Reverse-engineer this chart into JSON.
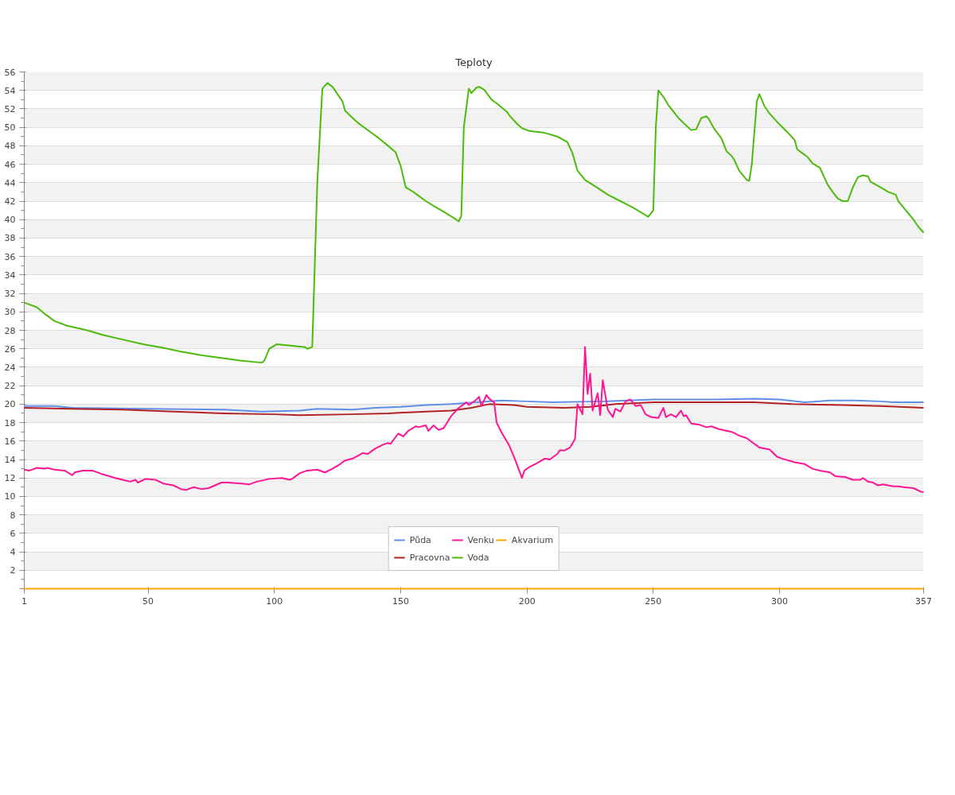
{
  "chart_data": {
    "type": "line",
    "title": "Teploty",
    "xlim": [
      1,
      357
    ],
    "ylim": [
      0,
      56
    ],
    "yticks": [
      {
        "value": 0,
        "label": null
      },
      2,
      4,
      6,
      8,
      10,
      12,
      14,
      16,
      18,
      20,
      22,
      24,
      26,
      28,
      30,
      32,
      34,
      36,
      38,
      40,
      42,
      44,
      46,
      48,
      50,
      52,
      54,
      56
    ],
    "xticks": [
      1,
      50,
      100,
      150,
      200,
      250,
      300,
      357
    ],
    "grid": "y",
    "legend": "bottom",
    "line_style": "solid",
    "marker": "none",
    "series": [
      {
        "name": "Půda",
        "color": "#5f8fe8",
        "x": [
          1,
          13,
          20,
          50,
          80,
          95,
          110,
          117,
          131,
          140,
          150,
          160,
          170,
          180,
          190,
          200,
          210,
          230,
          240,
          250,
          275,
          290,
          300,
          310,
          320,
          330,
          340,
          345,
          357
        ],
        "values": [
          19.8,
          19.8,
          19.6,
          19.5,
          19.4,
          19.2,
          19.3,
          19.5,
          19.4,
          19.6,
          19.7,
          19.9,
          20.0,
          20.2,
          20.4,
          20.3,
          20.2,
          20.3,
          20.4,
          20.5,
          20.5,
          20.6,
          20.5,
          20.2,
          20.4,
          20.4,
          20.3,
          20.2,
          20.2
        ]
      },
      {
        "name": "Pracovna",
        "color": "#b22222",
        "x": [
          1,
          20,
          40,
          60,
          80,
          100,
          110,
          130,
          145,
          160,
          170,
          178,
          185,
          195,
          200,
          215,
          225,
          235,
          250,
          290,
          305,
          325,
          340,
          357
        ],
        "values": [
          19.6,
          19.5,
          19.4,
          19.2,
          19.0,
          18.9,
          18.8,
          18.9,
          19.0,
          19.2,
          19.3,
          19.6,
          20.0,
          19.9,
          19.7,
          19.6,
          19.7,
          20.0,
          20.2,
          20.2,
          20.0,
          19.9,
          19.8,
          19.6
        ]
      },
      {
        "name": "Venku",
        "color": "#ff1493",
        "x": [
          1,
          3,
          6,
          9,
          10,
          13,
          17,
          20,
          21,
          24,
          28,
          32,
          37,
          40,
          43,
          45,
          46,
          49,
          53,
          56,
          60,
          63,
          65,
          68,
          71,
          74,
          79,
          82,
          87,
          90,
          93,
          98,
          103,
          106,
          107,
          110,
          113,
          117,
          120,
          123,
          126,
          128,
          131,
          135,
          137,
          140,
          143,
          145,
          146,
          149,
          151,
          153,
          156,
          157,
          160,
          161,
          163,
          165,
          167,
          170,
          173,
          176,
          177,
          180,
          181,
          182,
          184,
          185,
          187,
          188,
          190,
          193,
          195,
          198,
          199,
          201,
          204,
          207,
          209,
          212,
          213,
          215,
          217,
          219,
          220,
          222,
          223,
          224,
          225,
          226,
          228,
          229,
          230,
          231,
          232,
          234,
          235,
          237,
          239,
          241,
          243,
          245,
          247,
          249,
          252,
          254,
          255,
          257,
          259,
          261,
          262,
          263,
          265,
          268,
          271,
          273,
          276,
          281,
          284,
          287,
          290,
          292,
          296,
          299,
          301,
          306,
          310,
          313,
          316,
          320,
          322,
          326,
          329,
          332,
          333,
          335,
          337,
          339,
          341,
          345,
          347,
          349,
          353,
          356,
          357
        ],
        "values": [
          12.9,
          12.8,
          13.1,
          13.0,
          13.1,
          12.9,
          12.8,
          12.3,
          12.6,
          12.8,
          12.8,
          12.4,
          12.0,
          11.8,
          11.6,
          11.8,
          11.5,
          11.9,
          11.8,
          11.4,
          11.2,
          10.8,
          10.7,
          11.0,
          10.8,
          10.9,
          11.5,
          11.5,
          11.4,
          11.3,
          11.6,
          11.9,
          12.0,
          11.8,
          11.9,
          12.5,
          12.8,
          12.9,
          12.6,
          13.0,
          13.5,
          13.9,
          14.1,
          14.7,
          14.6,
          15.2,
          15.6,
          15.8,
          15.7,
          16.8,
          16.5,
          17.1,
          17.6,
          17.5,
          17.7,
          17.1,
          17.7,
          17.2,
          17.4,
          18.7,
          19.6,
          20.2,
          19.9,
          20.5,
          20.8,
          19.8,
          21.0,
          20.6,
          20.2,
          18.0,
          16.9,
          15.5,
          14.2,
          12.0,
          12.8,
          13.2,
          13.6,
          14.1,
          14.0,
          14.6,
          15.0,
          15.0,
          15.3,
          16.2,
          20.0,
          18.9,
          26.2,
          21.1,
          23.3,
          19.3,
          21.2,
          18.8,
          22.6,
          21.0,
          19.4,
          18.6,
          19.5,
          19.2,
          20.3,
          20.5,
          19.8,
          19.9,
          18.9,
          18.6,
          18.5,
          19.6,
          18.6,
          18.9,
          18.6,
          19.3,
          18.7,
          18.8,
          17.9,
          17.8,
          17.5,
          17.6,
          17.3,
          17.0,
          16.6,
          16.3,
          15.7,
          15.3,
          15.1,
          14.3,
          14.1,
          13.7,
          13.5,
          13.0,
          12.8,
          12.6,
          12.2,
          12.1,
          11.8,
          11.8,
          12.0,
          11.6,
          11.5,
          11.2,
          11.3,
          11.1,
          11.1,
          11.0,
          10.9,
          10.5,
          10.5
        ]
      },
      {
        "name": "Voda",
        "color": "#4cbb0c",
        "x": [
          1,
          6,
          9,
          13,
          18,
          26,
          32,
          40,
          48,
          56,
          63,
          71,
          79,
          87,
          95,
          96,
          98,
          101,
          104,
          112,
          113,
          115,
          117,
          119,
          121,
          123,
          125,
          127,
          128,
          131,
          133,
          138,
          141,
          145,
          148,
          150,
          152,
          155,
          160,
          163,
          168,
          172,
          173,
          174,
          175,
          177,
          178,
          180,
          181,
          183,
          186,
          188,
          192,
          193,
          196,
          198,
          201,
          207,
          212,
          216,
          218,
          220,
          223,
          227,
          232,
          237,
          242,
          245,
          248,
          250,
          251,
          252,
          254,
          256,
          260,
          263,
          265,
          267,
          269,
          271,
          272,
          274,
          277,
          279,
          281,
          282,
          284,
          287,
          288,
          289,
          291,
          292,
          294,
          296,
          299,
          303,
          306,
          307,
          309,
          311,
          313,
          316,
          319,
          321,
          323,
          325,
          327,
          329,
          331,
          333,
          335,
          336,
          340,
          343,
          346,
          347,
          350,
          353,
          355,
          357
        ],
        "values": [
          31.0,
          30.5,
          29.8,
          29.0,
          28.5,
          28.0,
          27.5,
          27.0,
          26.5,
          26.1,
          25.7,
          25.3,
          25.0,
          24.7,
          24.5,
          24.7,
          26.0,
          26.5,
          26.4,
          26.2,
          26.0,
          26.2,
          44.0,
          54.2,
          54.8,
          54.4,
          53.6,
          52.8,
          51.8,
          51.0,
          50.5,
          49.5,
          48.9,
          48.0,
          47.3,
          45.8,
          43.5,
          43.0,
          42.0,
          41.5,
          40.7,
          40.0,
          39.8,
          40.4,
          50.0,
          54.2,
          53.7,
          54.3,
          54.4,
          54.1,
          53.0,
          52.6,
          51.7,
          51.3,
          50.4,
          49.9,
          49.6,
          49.4,
          49.0,
          48.4,
          47.2,
          45.3,
          44.3,
          43.6,
          42.7,
          42.0,
          41.3,
          40.8,
          40.3,
          41.0,
          50.0,
          54.0,
          53.3,
          52.4,
          51.0,
          50.2,
          49.7,
          49.8,
          51.0,
          51.2,
          50.9,
          49.9,
          48.8,
          47.4,
          46.9,
          46.5,
          45.3,
          44.3,
          44.2,
          46.0,
          52.8,
          53.6,
          52.3,
          51.5,
          50.6,
          49.5,
          48.6,
          47.6,
          47.2,
          46.8,
          46.1,
          45.6,
          43.8,
          43.0,
          42.3,
          42.0,
          42.0,
          43.5,
          44.6,
          44.8,
          44.7,
          44.1,
          43.5,
          43.0,
          42.7,
          42.0,
          41.0,
          40.0,
          39.2,
          38.6
        ]
      },
      {
        "name": "Akvarium",
        "color": "#ffa500",
        "x": [
          1,
          357
        ],
        "values": [
          0,
          0
        ]
      }
    ]
  }
}
